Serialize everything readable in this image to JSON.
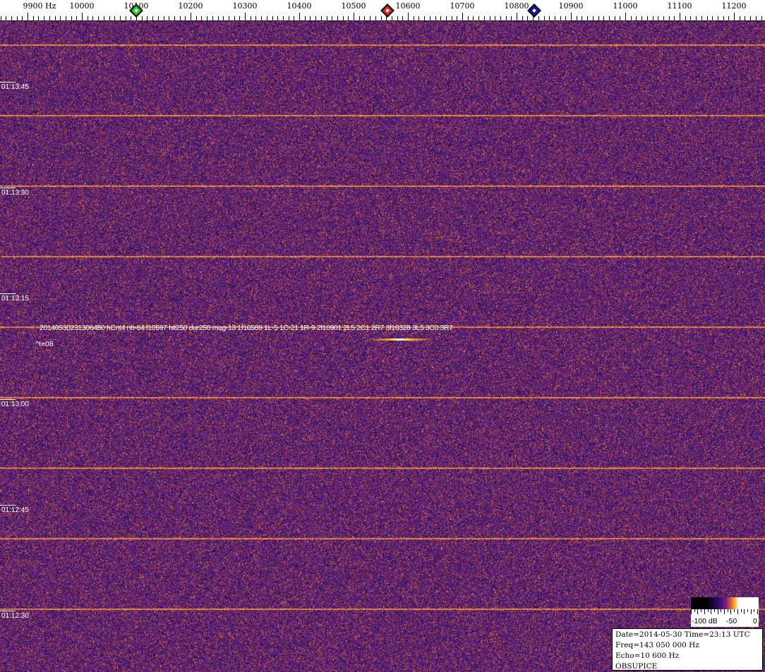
{
  "frequency_axis": {
    "unit_label": "9900 Hz",
    "ticks": [
      "10000",
      "10100",
      "10200",
      "10300",
      "10400",
      "10500",
      "10600",
      "10700",
      "10800",
      "10900",
      "11000",
      "11100",
      "11200"
    ],
    "start_hz": 9900,
    "markers": [
      {
        "name": "green-marker",
        "freq_hz": 10100,
        "color": "#22cc22"
      },
      {
        "name": "red-marker",
        "freq_hz": 10562,
        "color": "#dd2222"
      },
      {
        "name": "blue-marker",
        "freq_hz": 10832,
        "color": "#1a1aa0"
      }
    ]
  },
  "time_axis": {
    "labels": [
      "01:13:45",
      "01:13:30",
      "01:13:15",
      "01:13:00",
      "01:12:45",
      "01:12:30"
    ]
  },
  "detection": {
    "text": "20140530231306480 hCnt4 nb-64 f10597 hit250 dur250 mag-13 1f10589 1L-5 1C-21 1R-9 2f10901 2L5 2C1 2R7 3f10328 3L5 3C0 3R7",
    "offset": "^t+08"
  },
  "color_scale": {
    "labels": [
      "-100 dB",
      "-50",
      "0"
    ]
  },
  "info": {
    "date_time": "Date=2014-05-30 Time=23:13 UTC",
    "freq": "Freq=143 050 000 Hz",
    "echo": "Echo=10 600 Hz",
    "station": "OBSUPICE"
  },
  "colors": {
    "background": "#3c1a6e",
    "noise_hot": "#e0802a",
    "line": "#ffa030"
  }
}
